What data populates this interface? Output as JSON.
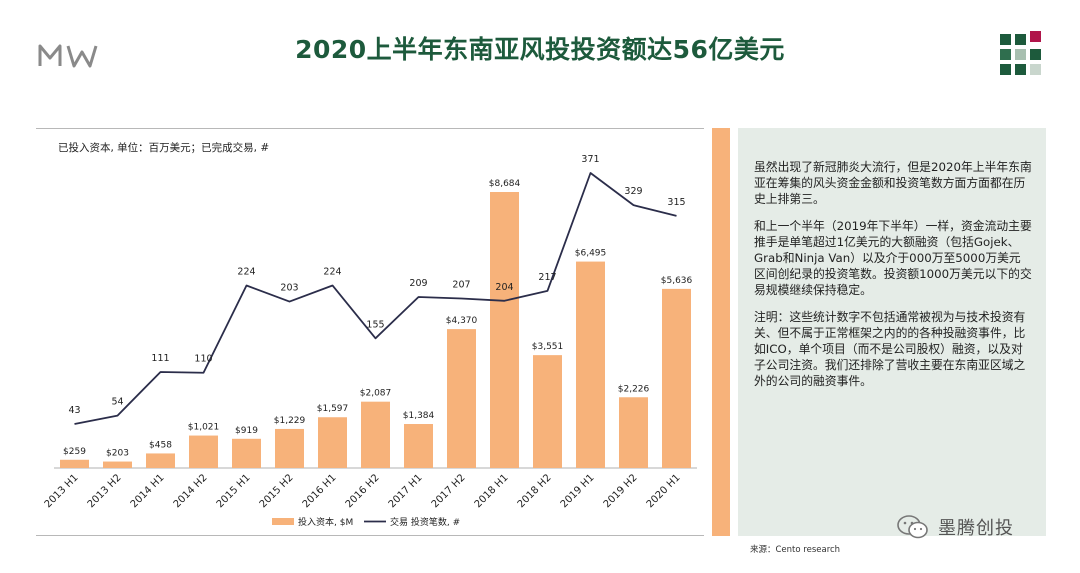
{
  "page_title": "2020上半年东南亚风投投资额达56亿美元",
  "chart_subtitle": "已投入资本, 单位：百万美元；已完成交易, #",
  "chart_data": {
    "type": "bar+line",
    "categories": [
      "2013 H1",
      "2013 H2",
      "2014 H1",
      "2014 H2",
      "2015 H1",
      "2015 H2",
      "2016 H1",
      "2016 H2",
      "2017 H1",
      "2017 H2",
      "2018 H1",
      "2018 H2",
      "2019 H1",
      "2019 H2",
      "2020 H1"
    ],
    "series": [
      {
        "name": "投入资本, $M",
        "type": "bar",
        "color": "#f7b27a",
        "values": [
          259,
          203,
          458,
          1021,
          919,
          1229,
          1597,
          2087,
          1384,
          4370,
          8684,
          3551,
          6495,
          2226,
          5636
        ],
        "labels": [
          "$259",
          "$203",
          "$458",
          "$1,021",
          "$919",
          "$1,229",
          "$1,597",
          "$2,087",
          "$1,384",
          "$4,370",
          "$8,684",
          "$3,551",
          "$6,495",
          "$2,226",
          "$5,636"
        ]
      },
      {
        "name": "交易  投资笔数, #",
        "type": "line",
        "color": "#2b2d4a",
        "values": [
          43,
          54,
          111,
          110,
          224,
          203,
          224,
          155,
          209,
          207,
          204,
          217,
          371,
          329,
          315
        ],
        "labels": [
          "43",
          "54",
          "111",
          "110",
          "224",
          "203",
          "224",
          "155",
          "209",
          "207",
          "204",
          "217",
          "371",
          "329",
          "315"
        ]
      }
    ],
    "legend": {
      "position": "bottom",
      "bar_label": "投入资本, $M",
      "line_label": "交易  投资笔数, #"
    }
  },
  "side_text": {
    "para1": "虽然出现了新冠肺炎大流行，但是2020年上半年东南亚在筹集的风头资金金额和投资笔数方面方面都在历史上排第三。",
    "para2": "和上一个半年（2019年下半年）一样，资金流动主要推手是单笔超过1亿美元的大额融资（包括Gojek、Grab和Ninja Van）以及介于000万至5000万美元区间创纪录的投资笔数。投资额1000万美元以下的交易规模继续保持稳定。",
    "para3": "注明：这些统计数字不包括通常被视为与技术投资有关、但不属于正常框架之内的的各种投融资事件，比如ICO，单个项目（而不是公司股权）融资，以及对子公司注资。我们还排除了营收主要在东南亚区域之外的公司的融资事件。"
  },
  "source": "来源：Cento research",
  "watermark": "墨腾创投",
  "colors": {
    "title": "#1d5a3c",
    "bar": "#f7b27a",
    "line": "#2b2d4a",
    "panel": "#e5ece7"
  }
}
